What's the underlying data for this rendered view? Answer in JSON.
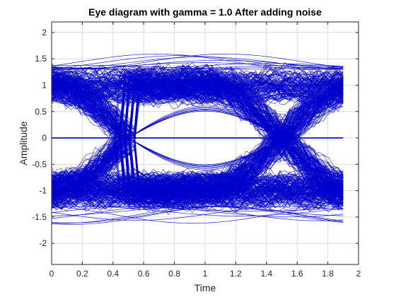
{
  "chart_data": {
    "type": "line",
    "title": "Eye diagram with gamma = 1.0 After adding noise",
    "xlabel": "Time",
    "ylabel": "Amplitude",
    "xlim": [
      0,
      2
    ],
    "ylim": [
      -2.4,
      2.2
    ],
    "xticks": [
      0,
      0.2,
      0.4,
      0.6,
      0.8,
      1,
      1.2,
      1.4,
      1.6,
      1.8,
      2
    ],
    "xtick_labels": [
      "0",
      "0.2",
      "0.4",
      "0.6",
      "0.8",
      "1",
      "1.2",
      "1.4",
      "1.6",
      "1.8",
      "2"
    ],
    "yticks": [
      -2,
      -1.5,
      -1,
      -0.5,
      0,
      0.5,
      1,
      1.5,
      2
    ],
    "ytick_labels": [
      "-2",
      "-1.5",
      "-1",
      "-0.5",
      "0",
      "0.5",
      "1",
      "1.5",
      "2"
    ],
    "grid": true,
    "trace_color": "#0000CC",
    "trace_x_range": [
      0,
      1.9
    ],
    "symbol_period": 1,
    "symbol_levels": [
      -1,
      1
    ],
    "crossings_x": [
      0.5,
      1.5
    ],
    "eye_center_x": 1,
    "eye_inner_opening": [
      -0.55,
      0.55
    ],
    "envelope_max": 1.6,
    "envelope_min": -1.8,
    "zero_line_y": 0
  }
}
